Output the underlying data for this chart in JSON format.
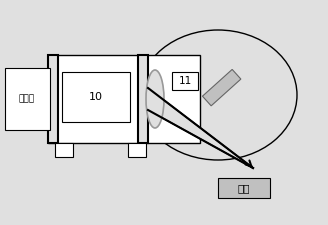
{
  "bg_color": "#e0e0e0",
  "white": "#ffffff",
  "black": "#000000",
  "gray": "#999999",
  "dark_gray": "#666666",
  "light_gray": "#c0c0c0",
  "labels": {
    "laser": "激光器",
    "ten": "10",
    "eleven": "11",
    "sample": "样品"
  },
  "figsize": [
    3.28,
    2.25
  ],
  "dpi": 100
}
